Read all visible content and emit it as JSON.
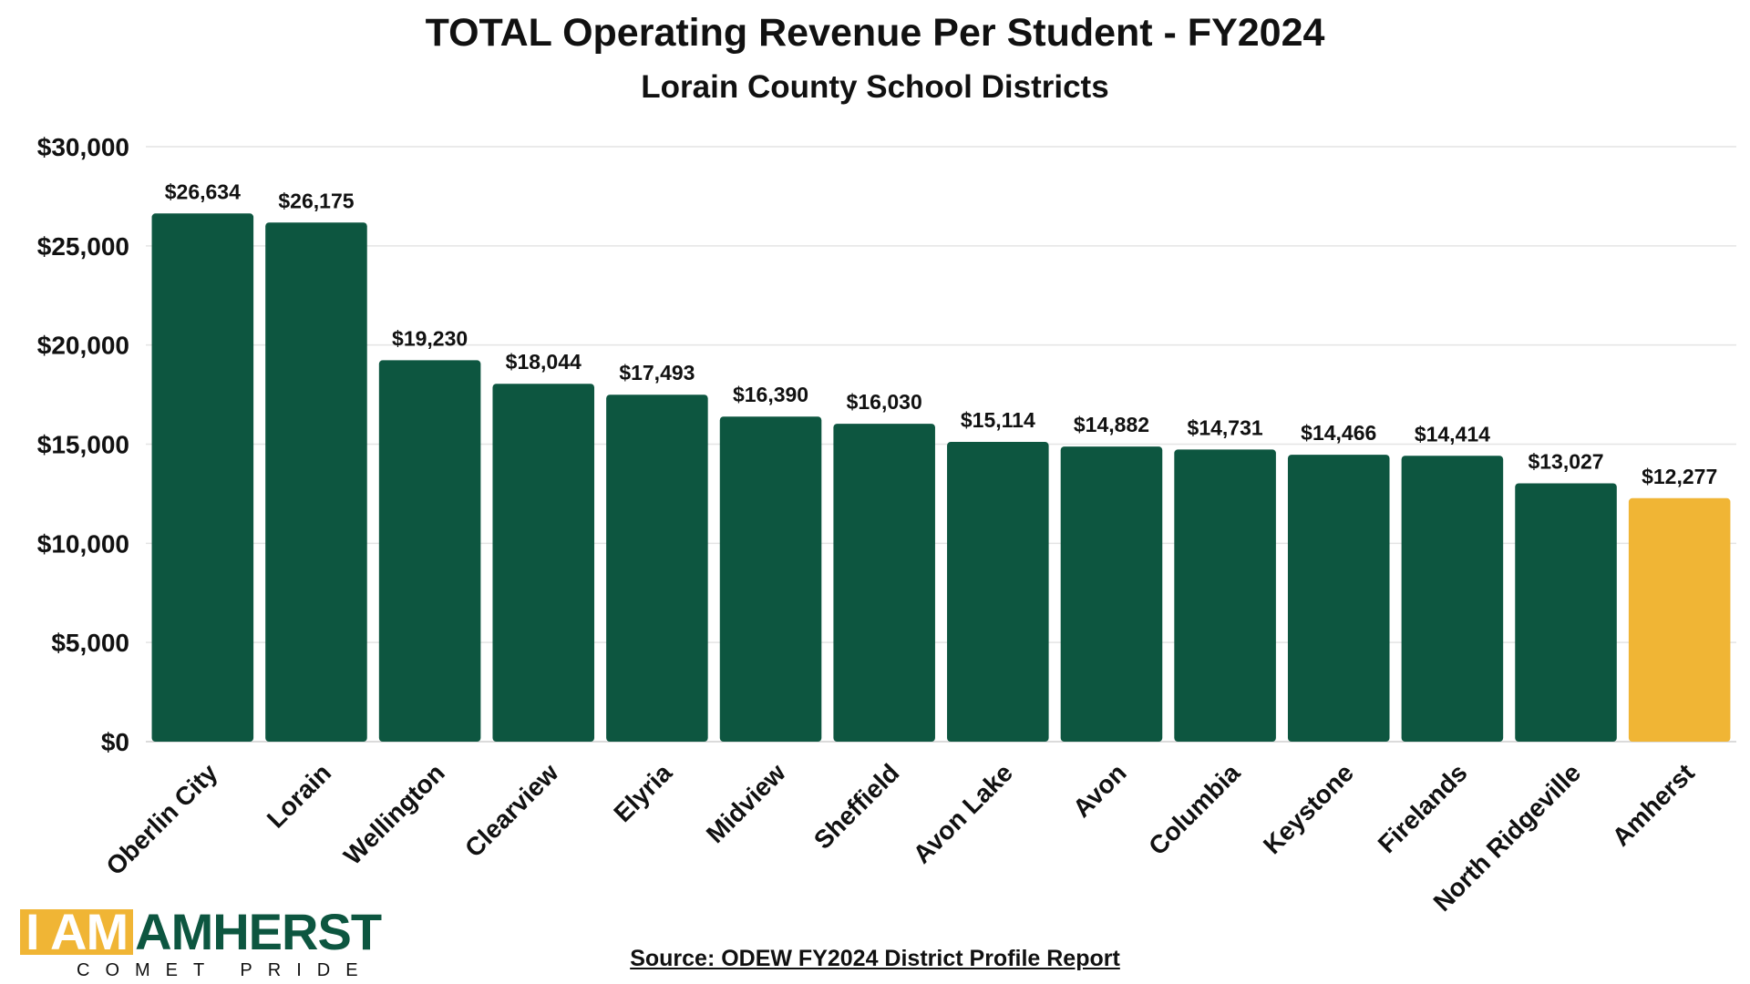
{
  "header": {
    "title": "TOTAL Operating Revenue Per Student - FY2024",
    "subtitle": "Lorain County School Districts"
  },
  "logo": {
    "part_a": "I AM",
    "part_b": "AMHERST",
    "tagline": "COMET PRIDE",
    "colors": {
      "gold": "#f0b535",
      "green": "#0d5640"
    }
  },
  "source": "Source: ODEW FY2024 District Profile Report",
  "chart_data": {
    "type": "bar",
    "title": "TOTAL Operating Revenue Per Student - FY2024",
    "subtitle": "Lorain County School Districts",
    "xlabel": "",
    "ylabel": "",
    "categories": [
      "Oberlin City",
      "Lorain",
      "Wellington",
      "Clearview",
      "Elyria",
      "Midview",
      "Sheffield",
      "Avon Lake",
      "Avon",
      "Columbia",
      "Keystone",
      "Firelands",
      "North Ridgeville",
      "Amherst"
    ],
    "values": [
      26634,
      26175,
      19230,
      18044,
      17493,
      16390,
      16030,
      15114,
      14882,
      14731,
      14466,
      14414,
      13027,
      12277
    ],
    "data_labels": [
      "$26,634",
      "$26,175",
      "$19,230",
      "$18,044",
      "$17,493",
      "$16,390",
      "$16,030",
      "$15,114",
      "$14,882",
      "$14,731",
      "$14,466",
      "$14,414",
      "$13,027",
      "$12,277"
    ],
    "ylim": [
      0,
      30000
    ],
    "yticks": [
      0,
      5000,
      10000,
      15000,
      20000,
      25000,
      30000
    ],
    "ytick_labels": [
      "$0",
      "$5,000",
      "$10,000",
      "$15,000",
      "$20,000",
      "$25,000",
      "$30,000"
    ],
    "grid": true,
    "legend": "none",
    "colors": {
      "default": "#0d5640",
      "highlight": "#f0b535"
    },
    "highlight_category": "Amherst"
  }
}
